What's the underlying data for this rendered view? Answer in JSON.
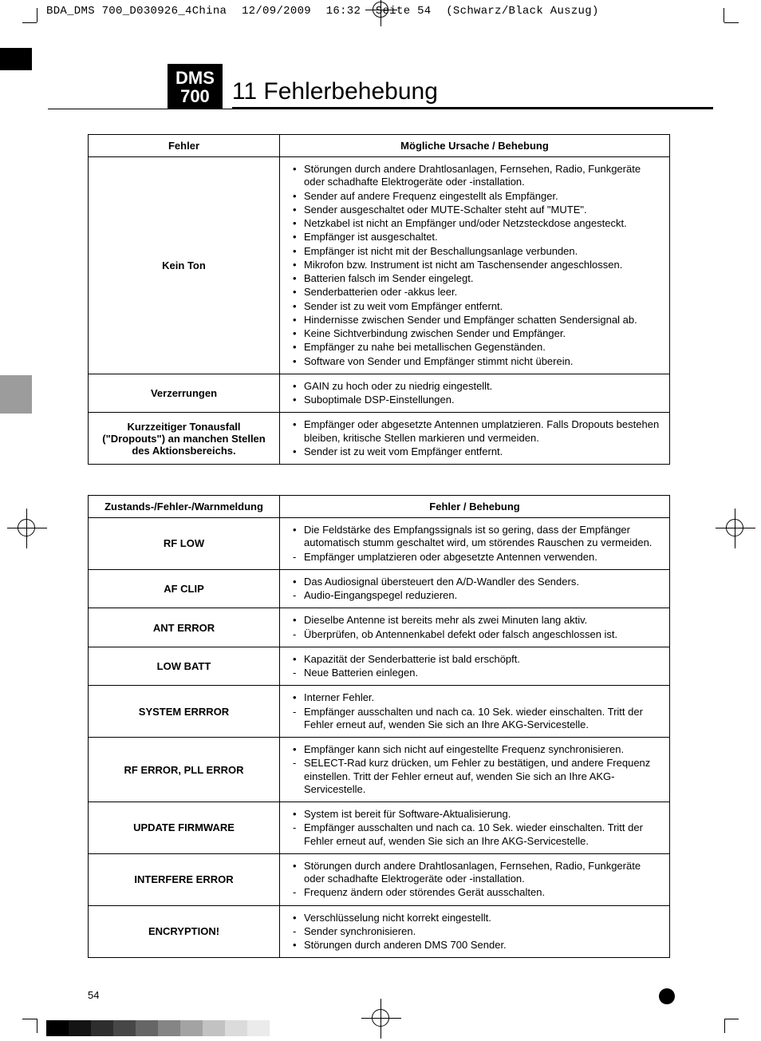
{
  "print_header": {
    "file": "BDA_DMS 700_D030926_4China",
    "date": "12/09/2009",
    "time": "16:32",
    "page": "Seite 54",
    "color": "(Schwarz/Black Auszug)"
  },
  "model": {
    "line1": "DMS",
    "line2": "700"
  },
  "chapter_title": "11 Fehlerbehebung",
  "table1": {
    "head": {
      "col1": "Fehler",
      "col2": "Mögliche Ursache / Behebung"
    },
    "rows": [
      {
        "label": "Kein Ton",
        "items": [
          {
            "t": "bullet",
            "text": "Störungen durch andere Drahtlosanlagen, Fernsehen, Radio, Funkgeräte oder schadhafte Elektrogeräte oder -installation."
          },
          {
            "t": "bullet",
            "text": "Sender auf andere Frequenz eingestellt als Empfänger."
          },
          {
            "t": "bullet",
            "text": "Sender ausgeschaltet oder MUTE-Schalter steht auf \"MUTE\"."
          },
          {
            "t": "bullet",
            "text": "Netzkabel ist nicht an Empfänger und/oder Netzsteckdose angesteckt."
          },
          {
            "t": "bullet",
            "text": "Empfänger ist ausgeschaltet."
          },
          {
            "t": "bullet",
            "text": "Empfänger ist nicht mit der Beschallungsanlage verbunden."
          },
          {
            "t": "bullet",
            "text": "Mikrofon bzw. Instrument ist nicht am Taschensender angeschlossen."
          },
          {
            "t": "bullet",
            "text": "Batterien falsch im Sender eingelegt."
          },
          {
            "t": "bullet",
            "text": "Senderbatterien oder -akkus leer."
          },
          {
            "t": "bullet",
            "text": "Sender ist zu weit vom Empfänger entfernt."
          },
          {
            "t": "bullet",
            "text": "Hindernisse zwischen Sender und Empfänger schatten Sendersignal ab."
          },
          {
            "t": "bullet",
            "text": "Keine Sichtverbindung zwischen Sender und Empfänger."
          },
          {
            "t": "bullet",
            "text": "Empfänger zu nahe bei metallischen Gegenständen."
          },
          {
            "t": "bullet",
            "text": "Software von Sender und Empfänger stimmt nicht überein."
          }
        ]
      },
      {
        "label": "Verzerrungen",
        "items": [
          {
            "t": "bullet",
            "text": "GAIN zu hoch oder zu niedrig eingestellt."
          },
          {
            "t": "bullet",
            "text": "Suboptimale DSP-Einstellungen."
          }
        ]
      },
      {
        "label": "Kurzzeitiger Tonausfall (\"Dropouts\") an manchen Stellen des Aktionsbereichs.",
        "items": [
          {
            "t": "bullet",
            "text": "Empfänger oder abgesetzte Antennen umplatzieren. Falls Dropouts bestehen bleiben, kritische Stellen markieren und vermeiden."
          },
          {
            "t": "bullet",
            "text": "Sender ist zu weit vom Empfänger entfernt."
          }
        ]
      }
    ]
  },
  "table2": {
    "head": {
      "col1": "Zustands-/Fehler-/Warnmeldung",
      "col2": "Fehler / Behebung"
    },
    "rows": [
      {
        "label": "RF LOW",
        "items": [
          {
            "t": "bullet",
            "text": "Die Feldstärke des Empfangssignals ist so gering, dass der Empfänger automatisch stumm geschaltet wird, um störendes Rauschen zu vermeiden."
          },
          {
            "t": "dash",
            "text": "Empfänger umplatzieren oder abgesetzte Antennen verwenden."
          }
        ]
      },
      {
        "label": "AF CLIP",
        "items": [
          {
            "t": "bullet",
            "text": "Das Audiosignal übersteuert den A/D-Wandler des Senders."
          },
          {
            "t": "dash",
            "text": "Audio-Eingangspegel reduzieren."
          }
        ]
      },
      {
        "label": "ANT ERROR",
        "items": [
          {
            "t": "bullet",
            "text": "Dieselbe Antenne ist bereits mehr als zwei Minuten lang aktiv."
          },
          {
            "t": "dash",
            "text": "Überprüfen, ob Antennenkabel defekt oder falsch angeschlossen ist."
          }
        ]
      },
      {
        "label": "LOW BATT",
        "items": [
          {
            "t": "bullet",
            "text": "Kapazität der Senderbatterie ist bald erschöpft."
          },
          {
            "t": "dash",
            "text": "Neue Batterien einlegen."
          }
        ]
      },
      {
        "label": "SYSTEM ERRROR",
        "items": [
          {
            "t": "bullet",
            "text": "Interner Fehler."
          },
          {
            "t": "dash",
            "text": "Empfänger ausschalten und nach ca. 10 Sek. wieder einschalten. Tritt der Fehler erneut auf, wenden Sie sich an Ihre AKG-Servicestelle."
          }
        ]
      },
      {
        "label": "RF ERROR, PLL ERROR",
        "items": [
          {
            "t": "bullet",
            "text": "Empfänger kann sich nicht auf eingestellte Frequenz synchronisieren."
          },
          {
            "t": "dash",
            "text": "SELECT-Rad kurz drücken, um Fehler zu bestätigen, und andere Frequenz einstellen. Tritt der Fehler erneut auf, wenden Sie sich an Ihre AKG-Servicestelle."
          }
        ]
      },
      {
        "label": "UPDATE FIRMWARE",
        "items": [
          {
            "t": "bullet",
            "text": "System ist bereit für Software-Aktualisierung."
          },
          {
            "t": "dash",
            "text": "Empfänger ausschalten und nach ca. 10 Sek. wieder einschalten. Tritt der Fehler erneut auf, wenden Sie sich an Ihre AKG-Servicestelle."
          }
        ]
      },
      {
        "label": "INTERFERE ERROR",
        "items": [
          {
            "t": "bullet",
            "text": "Störungen durch andere Drahtlosanlagen, Fernsehen, Radio, Funkgeräte oder schadhafte Elektrogeräte oder -installation."
          },
          {
            "t": "dash",
            "text": "Frequenz ändern oder störendes Gerät ausschalten."
          }
        ]
      },
      {
        "label": "ENCRYPTION!",
        "items": [
          {
            "t": "bullet",
            "text": "Verschlüsselung nicht korrekt eingestellt."
          },
          {
            "t": "dash",
            "text": "Sender synchronisieren."
          },
          {
            "t": "bullet",
            "text": "Störungen durch anderen DMS 700 Sender."
          }
        ]
      }
    ]
  },
  "page_number": "54",
  "colors": {
    "text": "#000000",
    "bg": "#ffffff",
    "tab_grey": "#9c9c9c"
  }
}
